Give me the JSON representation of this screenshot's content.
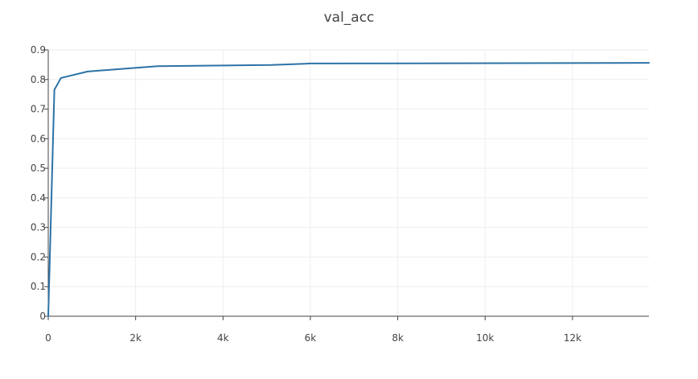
{
  "chart_data": {
    "type": "line",
    "title": "val_acc",
    "xlabel": "",
    "ylabel": "",
    "xlim": [
      0,
      13750
    ],
    "ylim": [
      0,
      0.9
    ],
    "grid": true,
    "x_ticks": [
      0,
      2000,
      4000,
      6000,
      8000,
      10000,
      12000
    ],
    "x_tick_labels": [
      "0",
      "2k",
      "4k",
      "6k",
      "8k",
      "10k",
      "12k"
    ],
    "y_ticks": [
      0,
      0.1,
      0.2,
      0.3,
      0.4,
      0.5,
      0.6,
      0.7,
      0.8,
      0.9
    ],
    "y_tick_labels": [
      "0",
      "0.1",
      "0.2",
      "0.3",
      "0.4",
      "0.5",
      "0.6",
      "0.7",
      "0.8",
      "0.9"
    ],
    "series": [
      {
        "color": "#2c72a6",
        "x": [
          0,
          140,
          290,
          900,
          2500,
          5100,
          6000,
          13750
        ],
        "y": [
          0.0,
          0.765,
          0.805,
          0.827,
          0.845,
          0.849,
          0.854,
          0.856
        ]
      }
    ]
  }
}
